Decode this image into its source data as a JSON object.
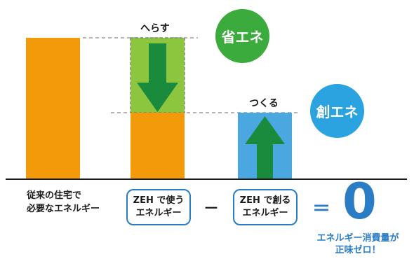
{
  "colors": {
    "orange": "#f39a0b",
    "green_fill": "#8cc63f",
    "arrow_green": "#1a8a3c",
    "blue_fill": "#4ba7e0",
    "green_circle": "#3aab3c",
    "blue_circle": "#2aa3e0",
    "pill_border": "#2a7cc4",
    "result_blue": "#2a7cc4"
  },
  "labels": {
    "reduce": "へらす",
    "create": "つくる",
    "energy_saving": "省エネ",
    "energy_creation": "創エネ",
    "conventional_line1": "従来の住宅で",
    "conventional_line2": "必要なエネルギー",
    "zeh_use_line1": "ZEH で使う",
    "zeh_use_line2": "エネルギー",
    "minus": "－",
    "zeh_create_line1": "ZEH で創る",
    "zeh_create_line2": "エネルギー",
    "equals": "＝",
    "zero": "0",
    "result_line1": "エネルギー消費量が",
    "result_line2": "正味ゼロ！"
  }
}
